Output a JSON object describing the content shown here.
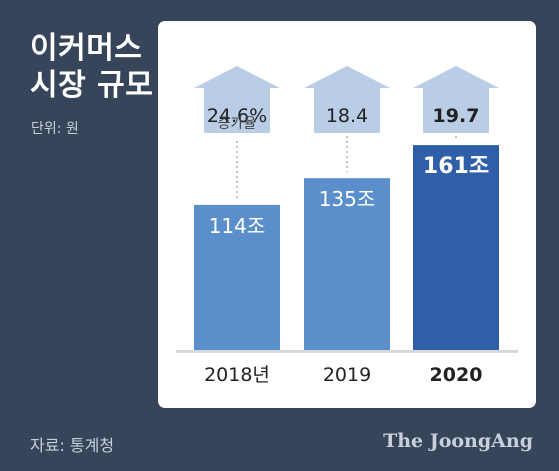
{
  "title_line1": "이커머스",
  "title_line2": "시장 규모",
  "unit": "단위: 원",
  "source": "자료: 통계청",
  "brand": "The JoongAng",
  "colors": {
    "background": "#37455a",
    "bar_light": "#5b8fcc",
    "bar_dark": "#2f5fa8",
    "arrow": "#b9cde6"
  },
  "chart_data": {
    "type": "bar",
    "title": "이커머스 시장 규모",
    "unit": "단위: 원",
    "categories": [
      "2018년",
      "2019",
      "2020"
    ],
    "values": [
      114,
      135,
      161
    ],
    "value_labels": [
      "114조",
      "135조",
      "161조"
    ],
    "growth_labels": [
      "24.6%",
      "18.4",
      "19.7"
    ],
    "growth_caption": "증가율",
    "highlight_index": 2,
    "ylim": [
      0,
      165
    ],
    "grid": false,
    "legend": "none"
  }
}
